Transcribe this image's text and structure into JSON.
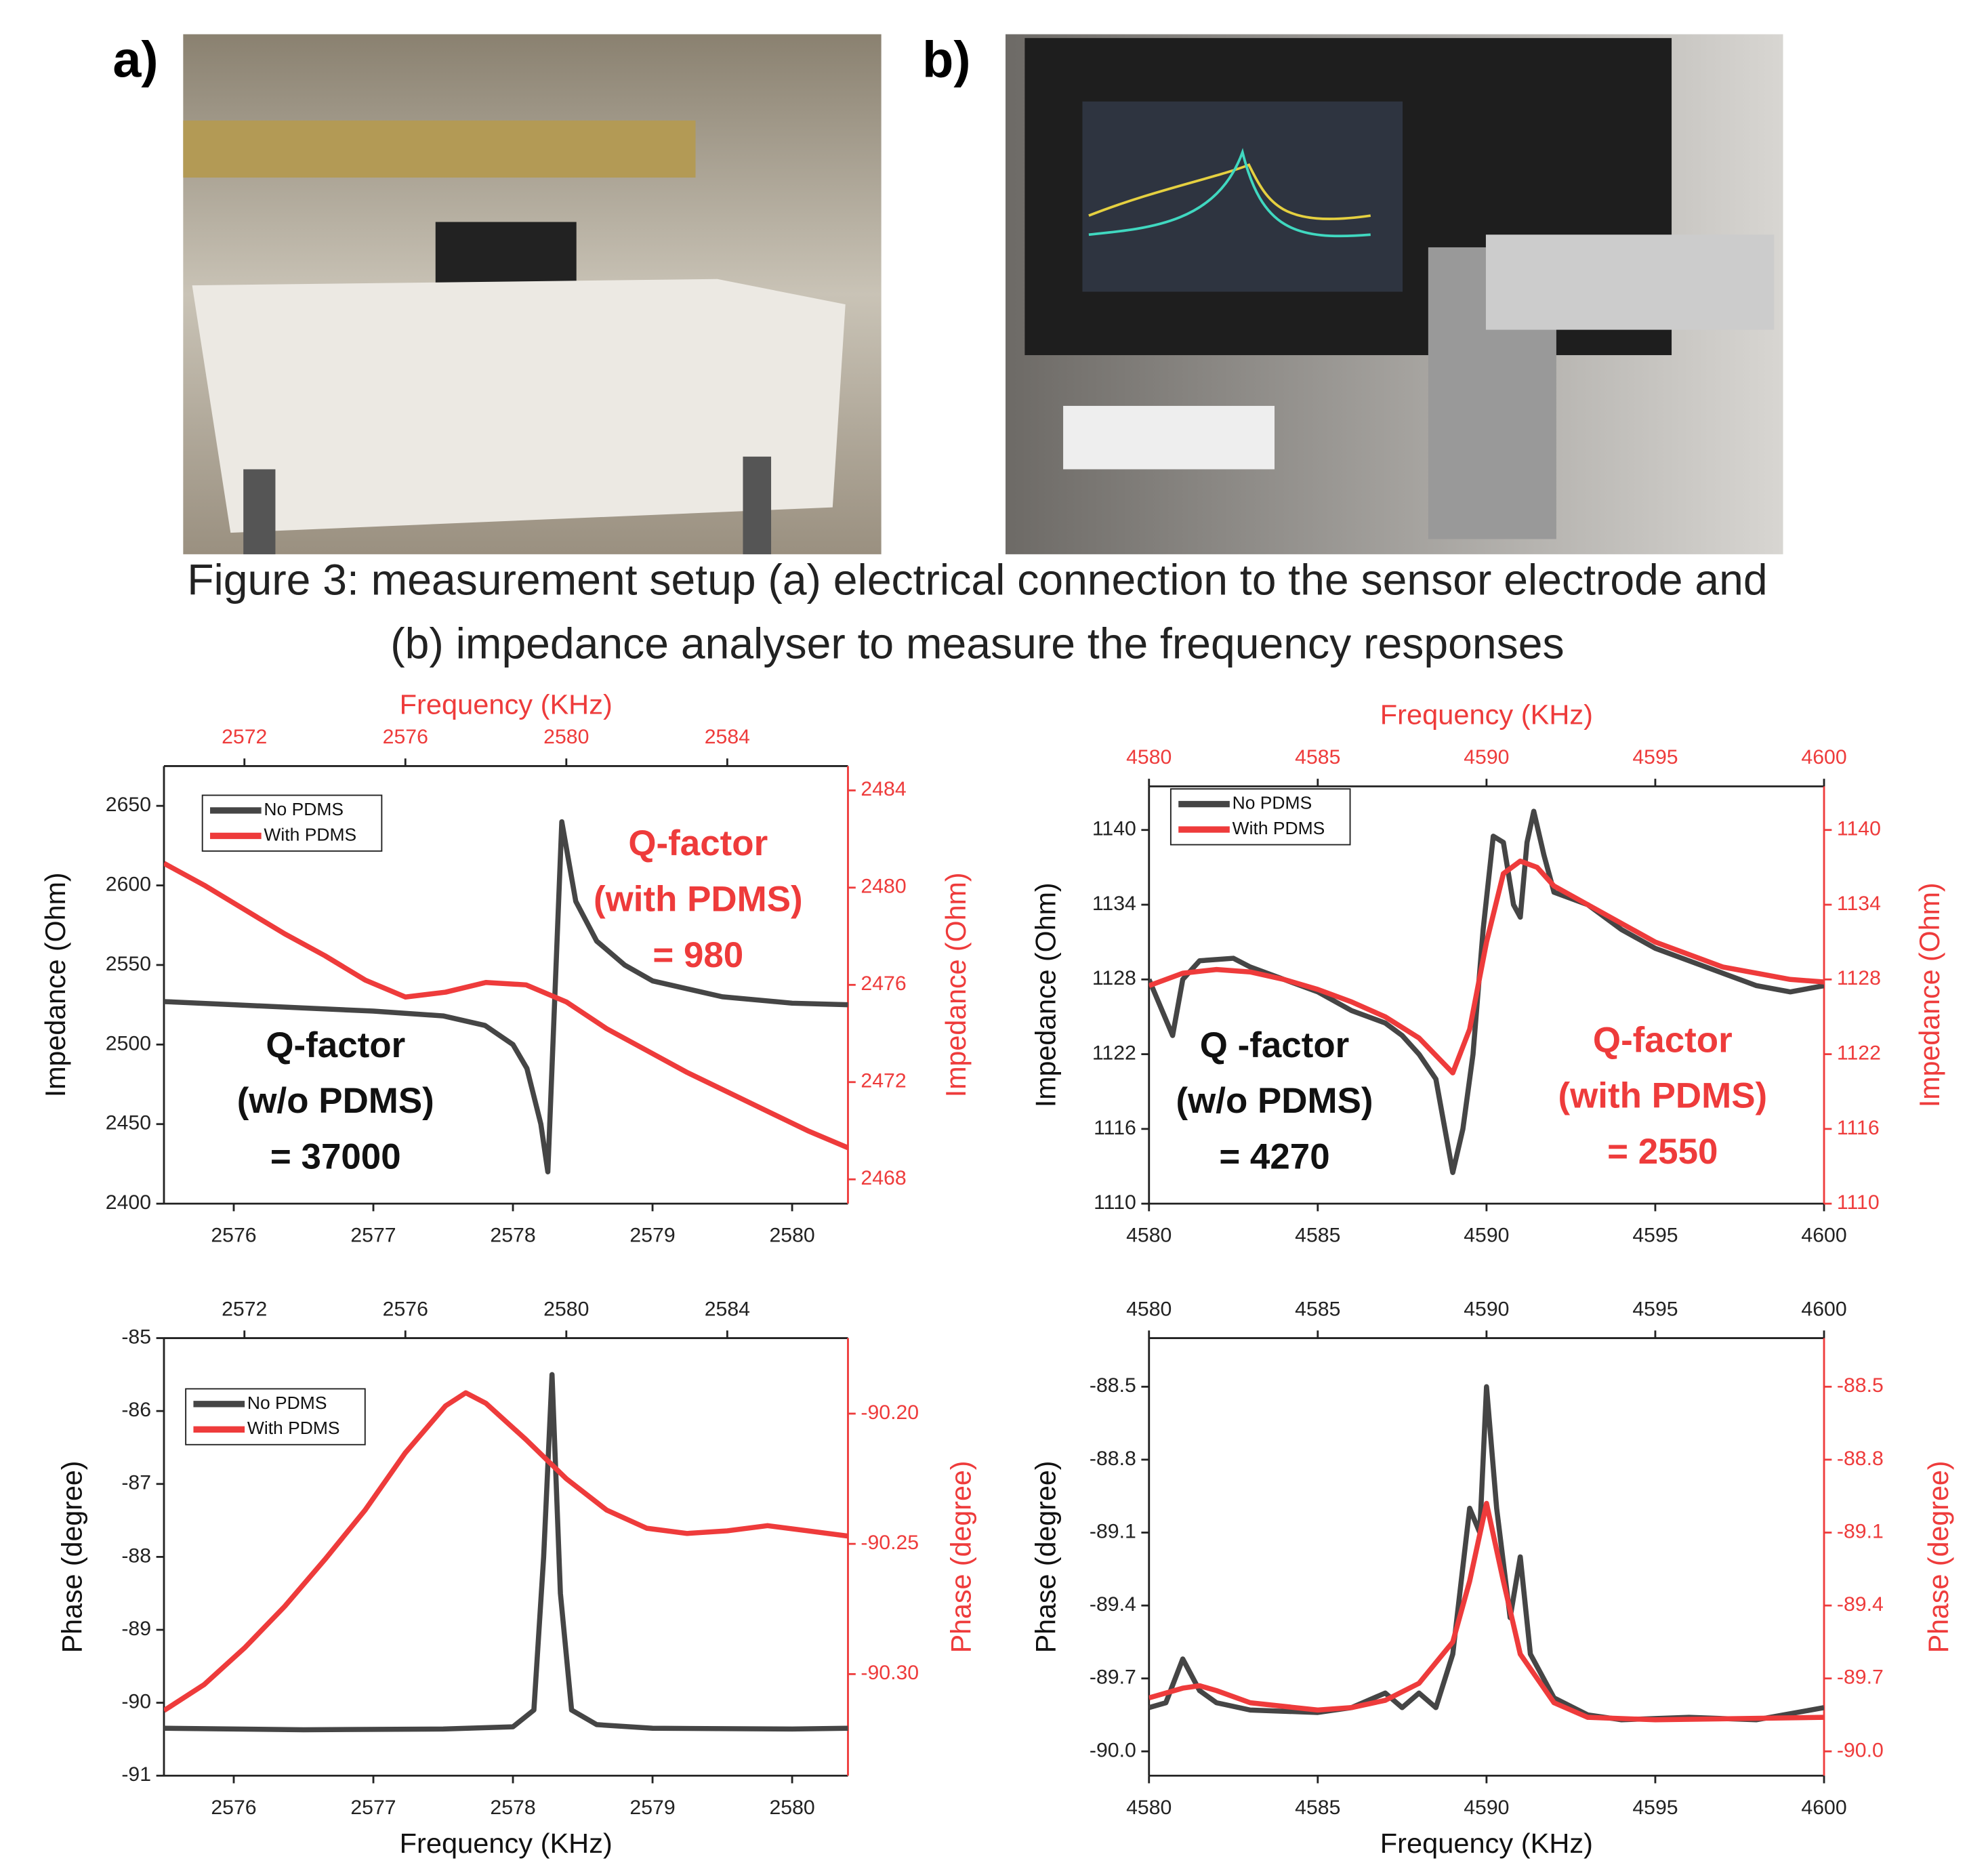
{
  "figure": {
    "panel_labels": [
      "a)",
      "b)"
    ],
    "caption": [
      "Figure 3:   measurement setup (a) electrical connection to the sensor electrode and",
      "(b) impedance analyser to measure the frequency responses"
    ]
  },
  "chart_data": [
    {
      "type": "line",
      "x2label": "Frequency (KHz)",
      "ylabel": "Impedance (Ohm)",
      "y2label": "Impedance (Ohm)",
      "xlim": [
        2575.5,
        2580.4
      ],
      "xticks": [
        2576,
        2577,
        2578,
        2579,
        2580
      ],
      "x2lim": [
        2570,
        2587
      ],
      "x2ticks": [
        2572,
        2576,
        2580,
        2584
      ],
      "x2color": "#ee3b3b",
      "ylim": [
        2400,
        2675
      ],
      "yticks": [
        2400,
        2450,
        2500,
        2550,
        2600,
        2650
      ],
      "y2lim": [
        2467,
        2485
      ],
      "y2ticks": [
        2468,
        2472,
        2476,
        2480,
        2484
      ],
      "y2color": "#ee3b3b",
      "series": [
        {
          "name": "No PDMS",
          "color": "#454545",
          "x": [
            2575.5,
            2576,
            2576.5,
            2577,
            2577.5,
            2577.8,
            2578,
            2578.1,
            2578.2,
            2578.25,
            2578.3,
            2578.35,
            2578.45,
            2578.6,
            2578.8,
            2579,
            2579.5,
            2580,
            2580.4
          ],
          "values": [
            2527,
            2525,
            2523,
            2521,
            2518,
            2512,
            2500,
            2485,
            2450,
            2420,
            2530,
            2640,
            2590,
            2565,
            2550,
            2540,
            2530,
            2526,
            2525
          ]
        },
        {
          "name": "With PDMS",
          "color": "#ee3b3b",
          "axis": "y2",
          "xaxis": "x2",
          "x": [
            2570,
            2571,
            2572,
            2573,
            2574,
            2575,
            2576,
            2577,
            2578,
            2579,
            2580,
            2581,
            2582,
            2583,
            2584,
            2585,
            2586,
            2587
          ],
          "values": [
            2481,
            2480.1,
            2479.1,
            2478.1,
            2477.2,
            2476.2,
            2475.5,
            2475.7,
            2476.1,
            2476,
            2475.3,
            2474.2,
            2473.3,
            2472.4,
            2471.6,
            2470.8,
            2470,
            2469.3
          ]
        }
      ],
      "annotations": [
        {
          "lines": [
            "Q-factor",
            "(w/o PDMS)",
            "= 37000"
          ],
          "color": "#111111"
        },
        {
          "lines": [
            "Q-factor",
            "(with PDMS)",
            "= 980"
          ],
          "color": "#ee3b3b"
        }
      ]
    },
    {
      "type": "line",
      "x2label": "Frequency (KHz)",
      "ylabel": "Impedance (Ohm)",
      "y2label": "Impedance (Ohm)",
      "xlim": [
        4580,
        4600
      ],
      "xticks": [
        4580,
        4585,
        4590,
        4595,
        4600
      ],
      "x2lim": [
        4580,
        4600
      ],
      "x2ticks": [
        4580,
        4585,
        4590,
        4595,
        4600
      ],
      "x2color": "#ee3b3b",
      "ylim": [
        1110,
        1143.5
      ],
      "yticks": [
        1110,
        1116,
        1122,
        1128,
        1134,
        1140
      ],
      "y2lim": [
        1110,
        1143.5
      ],
      "y2ticks": [
        1110,
        1116,
        1122,
        1128,
        1134,
        1140
      ],
      "y2color": "#ee3b3b",
      "series": [
        {
          "name": "No PDMS",
          "color": "#454545",
          "x": [
            4580,
            4580.7,
            4581,
            4581.5,
            4582.5,
            4583,
            4585,
            4586,
            4587,
            4587.5,
            4588,
            4588.5,
            4589,
            4589.3,
            4589.6,
            4589.9,
            4590.2,
            4590.5,
            4590.8,
            4591,
            4591.2,
            4591.4,
            4591.7,
            4592,
            4593,
            4594,
            4595,
            4596,
            4597,
            4598,
            4599,
            4600
          ],
          "values": [
            1128,
            1123.5,
            1128,
            1129.5,
            1129.7,
            1129,
            1127,
            1125.5,
            1124.5,
            1123.5,
            1122,
            1120,
            1112.5,
            1116,
            1122,
            1132,
            1139.5,
            1139,
            1134,
            1133,
            1139,
            1141.5,
            1138,
            1135,
            1134,
            1132,
            1130.5,
            1129.5,
            1128.5,
            1127.5,
            1127,
            1127.5
          ]
        },
        {
          "name": "With PDMS",
          "color": "#ee3b3b",
          "axis": "y2",
          "xaxis": "x2",
          "x": [
            4580,
            4581,
            4582,
            4583,
            4584,
            4585,
            4586,
            4587,
            4588,
            4589,
            4589.5,
            4590,
            4590.5,
            4591,
            4591.5,
            4592,
            4593,
            4594,
            4595,
            4596,
            4597,
            4598,
            4599,
            4600
          ],
          "values": [
            1127.5,
            1128.5,
            1128.8,
            1128.6,
            1128,
            1127.2,
            1126.2,
            1125,
            1123.3,
            1120.5,
            1124,
            1131,
            1136.5,
            1137.5,
            1137,
            1135.5,
            1134,
            1132.5,
            1131,
            1130,
            1129,
            1128.5,
            1128,
            1127.8
          ]
        }
      ],
      "annotations": [
        {
          "lines": [
            "Q -factor",
            "(w/o PDMS)",
            "= 4270"
          ],
          "color": "#111111"
        },
        {
          "lines": [
            "Q-factor",
            "(with PDMS)",
            "= 2550"
          ],
          "color": "#ee3b3b"
        }
      ]
    },
    {
      "type": "line",
      "xlabel": "Frequency (KHz)",
      "ylabel": "Phase (degree)",
      "y2label": "Phase (degree)",
      "xlim": [
        2575.5,
        2580.4
      ],
      "xticks": [
        2576,
        2577,
        2578,
        2579,
        2580
      ],
      "x2lim": [
        2570,
        2587
      ],
      "x2ticks": [
        2572,
        2576,
        2580,
        2584
      ],
      "x2color": "#222222",
      "ylim": [
        -91,
        -85
      ],
      "yticks": [
        -91,
        -90,
        -89,
        -88,
        -87,
        -86,
        -85
      ],
      "y2lim": [
        -90.339,
        -90.171
      ],
      "y2ticks": [
        {
          "value": -90.2,
          "label": "-90.20"
        },
        {
          "value": -90.25,
          "label": "-90.25"
        },
        {
          "value": -90.3,
          "label": "-90.30"
        }
      ],
      "y2color": "#ee3b3b",
      "series": [
        {
          "name": "No PDMS",
          "color": "#454545",
          "x": [
            2575.5,
            2576.5,
            2577.5,
            2578,
            2578.15,
            2578.22,
            2578.28,
            2578.34,
            2578.42,
            2578.6,
            2579,
            2580,
            2580.4
          ],
          "values": [
            -90.35,
            -90.37,
            -90.36,
            -90.33,
            -90.1,
            -88,
            -85.5,
            -88.5,
            -90.1,
            -90.3,
            -90.35,
            -90.36,
            -90.35
          ]
        },
        {
          "name": "With PDMS",
          "color": "#ee3b3b",
          "axis": "y2",
          "xaxis": "x2",
          "x": [
            2570,
            2571,
            2572,
            2573,
            2574,
            2575,
            2576,
            2577,
            2577.5,
            2578,
            2579,
            2580,
            2581,
            2582,
            2583,
            2584,
            2585,
            2586,
            2587
          ],
          "values": [
            -90.314,
            -90.304,
            -90.29,
            -90.274,
            -90.256,
            -90.237,
            -90.215,
            -90.197,
            -90.192,
            -90.196,
            -90.21,
            -90.225,
            -90.237,
            -90.244,
            -90.246,
            -90.245,
            -90.243,
            -90.245,
            -90.247
          ]
        }
      ]
    },
    {
      "type": "line",
      "xlabel": "Frequency (KHz)",
      "ylabel": "Phase (degree)",
      "y2label": "Phase (degree)",
      "xlim": [
        4580,
        4600
      ],
      "xticks": [
        4580,
        4585,
        4590,
        4595,
        4600
      ],
      "x2lim": [
        4580,
        4600
      ],
      "x2ticks": [
        4580,
        4585,
        4590,
        4595,
        4600
      ],
      "x2color": "#222222",
      "ylim": [
        -90.1,
        -88.3
      ],
      "yticks": [
        -88.5,
        -88.8,
        -89.1,
        -89.4,
        -89.7,
        {
          "value": -90,
          "label": "-90.0"
        }
      ],
      "y2lim": [
        -90.1,
        -88.3
      ],
      "y2ticks": [
        -88.5,
        -88.8,
        -89.1,
        -89.4,
        -89.7,
        {
          "value": -90,
          "label": "-90.0"
        }
      ],
      "y2color": "#ee3b3b",
      "series": [
        {
          "name": "No PDMS",
          "color": "#454545",
          "x": [
            4580,
            4580.5,
            4581,
            4581.5,
            4582,
            4583,
            4585,
            4586,
            4587,
            4587.5,
            4588,
            4588.5,
            4589,
            4589.5,
            4589.8,
            4590,
            4590.3,
            4590.7,
            4591,
            4591.3,
            4592,
            4593,
            4594,
            4596,
            4598,
            4600
          ],
          "values": [
            -89.82,
            -89.8,
            -89.62,
            -89.75,
            -89.8,
            -89.83,
            -89.84,
            -89.82,
            -89.76,
            -89.82,
            -89.76,
            -89.82,
            -89.6,
            -89,
            -89.1,
            -88.5,
            -89,
            -89.45,
            -89.2,
            -89.6,
            -89.78,
            -89.85,
            -89.87,
            -89.86,
            -89.87,
            -89.82
          ]
        },
        {
          "name": "With PDMS",
          "color": "#ee3b3b",
          "axis": "y2",
          "xaxis": "x2",
          "x": [
            4580,
            4581,
            4581.5,
            4582,
            4583,
            4585,
            4586,
            4587,
            4588,
            4589,
            4589.5,
            4590,
            4590.5,
            4591,
            4592,
            4593,
            4595,
            4600
          ],
          "values": [
            -89.78,
            -89.74,
            -89.73,
            -89.75,
            -89.8,
            -89.83,
            -89.82,
            -89.79,
            -89.72,
            -89.55,
            -89.3,
            -88.98,
            -89.3,
            -89.6,
            -89.8,
            -89.86,
            -89.87,
            -89.86
          ]
        }
      ]
    }
  ]
}
